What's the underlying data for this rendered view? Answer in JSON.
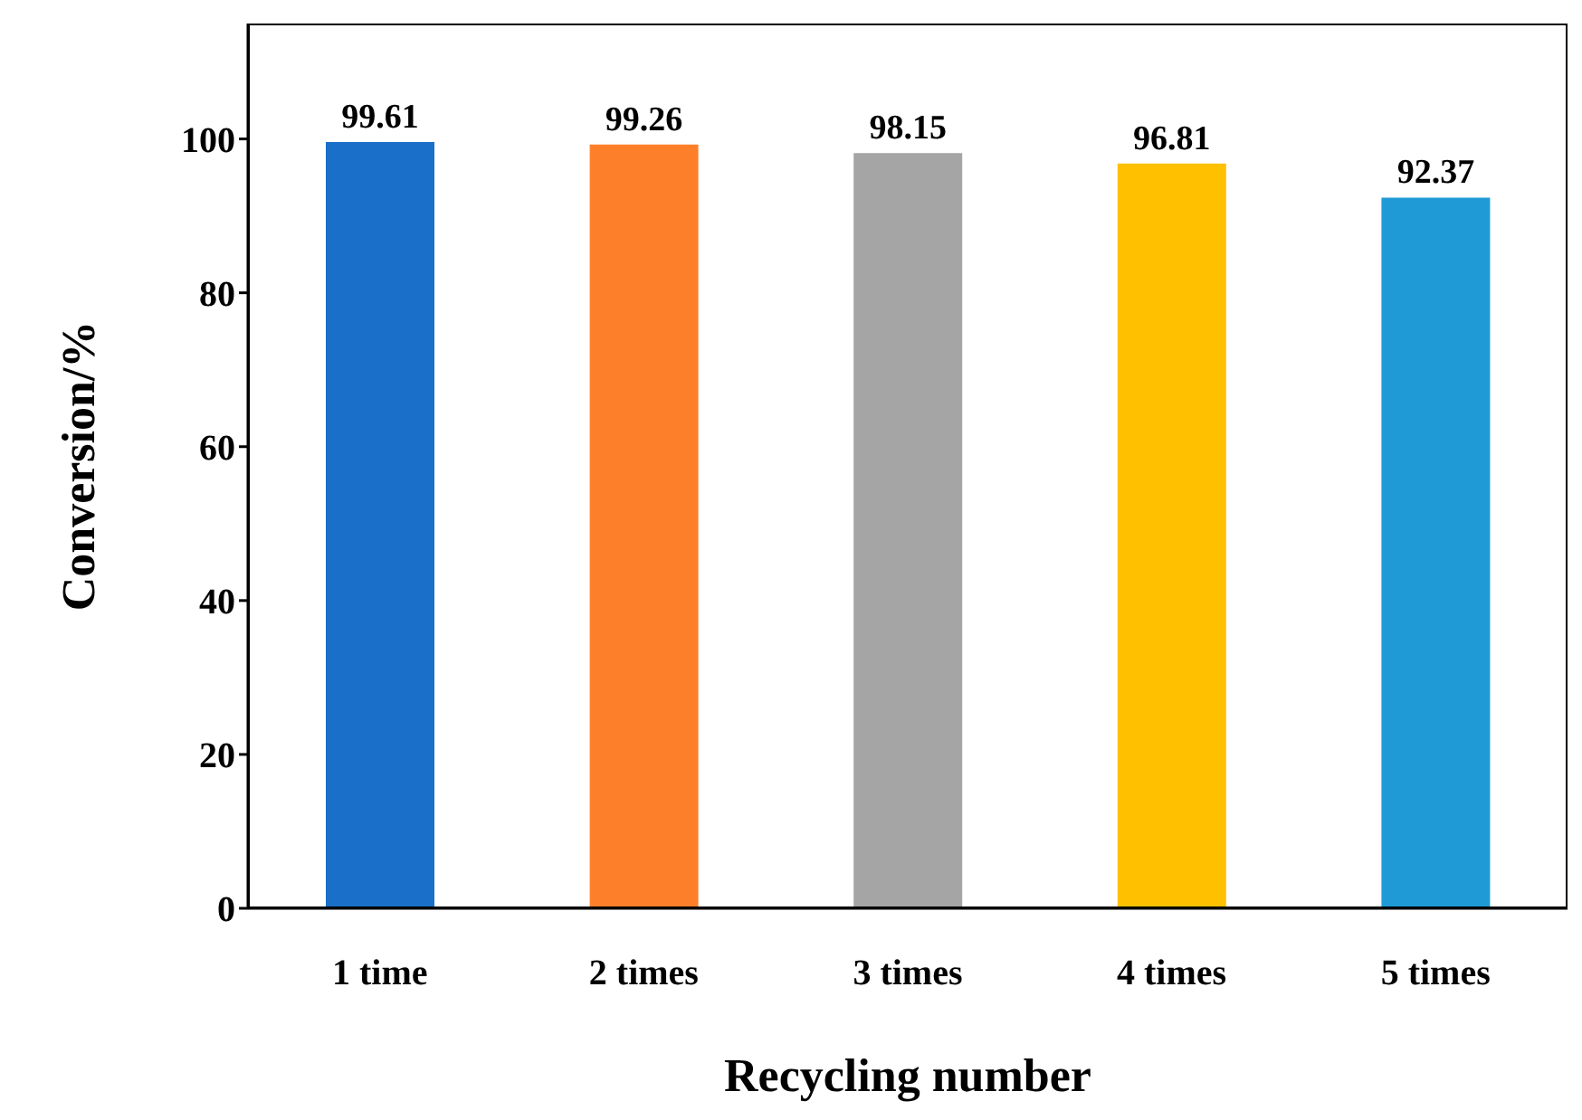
{
  "chart_data": {
    "type": "bar",
    "xlabel": "Recycling number",
    "ylabel": "Conversion/%",
    "categories": [
      "1 time",
      "2 times",
      "3 times",
      "4 times",
      "5 times"
    ],
    "values": [
      99.61,
      99.26,
      98.15,
      96.81,
      92.37
    ],
    "colors": [
      "#1a70c8",
      "#fe7f2a",
      "#a5a5a5",
      "#ffc000",
      "#1f9ad6"
    ],
    "ylim": [
      0,
      115
    ],
    "yticks": [
      0,
      20,
      40,
      60,
      80,
      100
    ],
    "data_labels": true
  }
}
